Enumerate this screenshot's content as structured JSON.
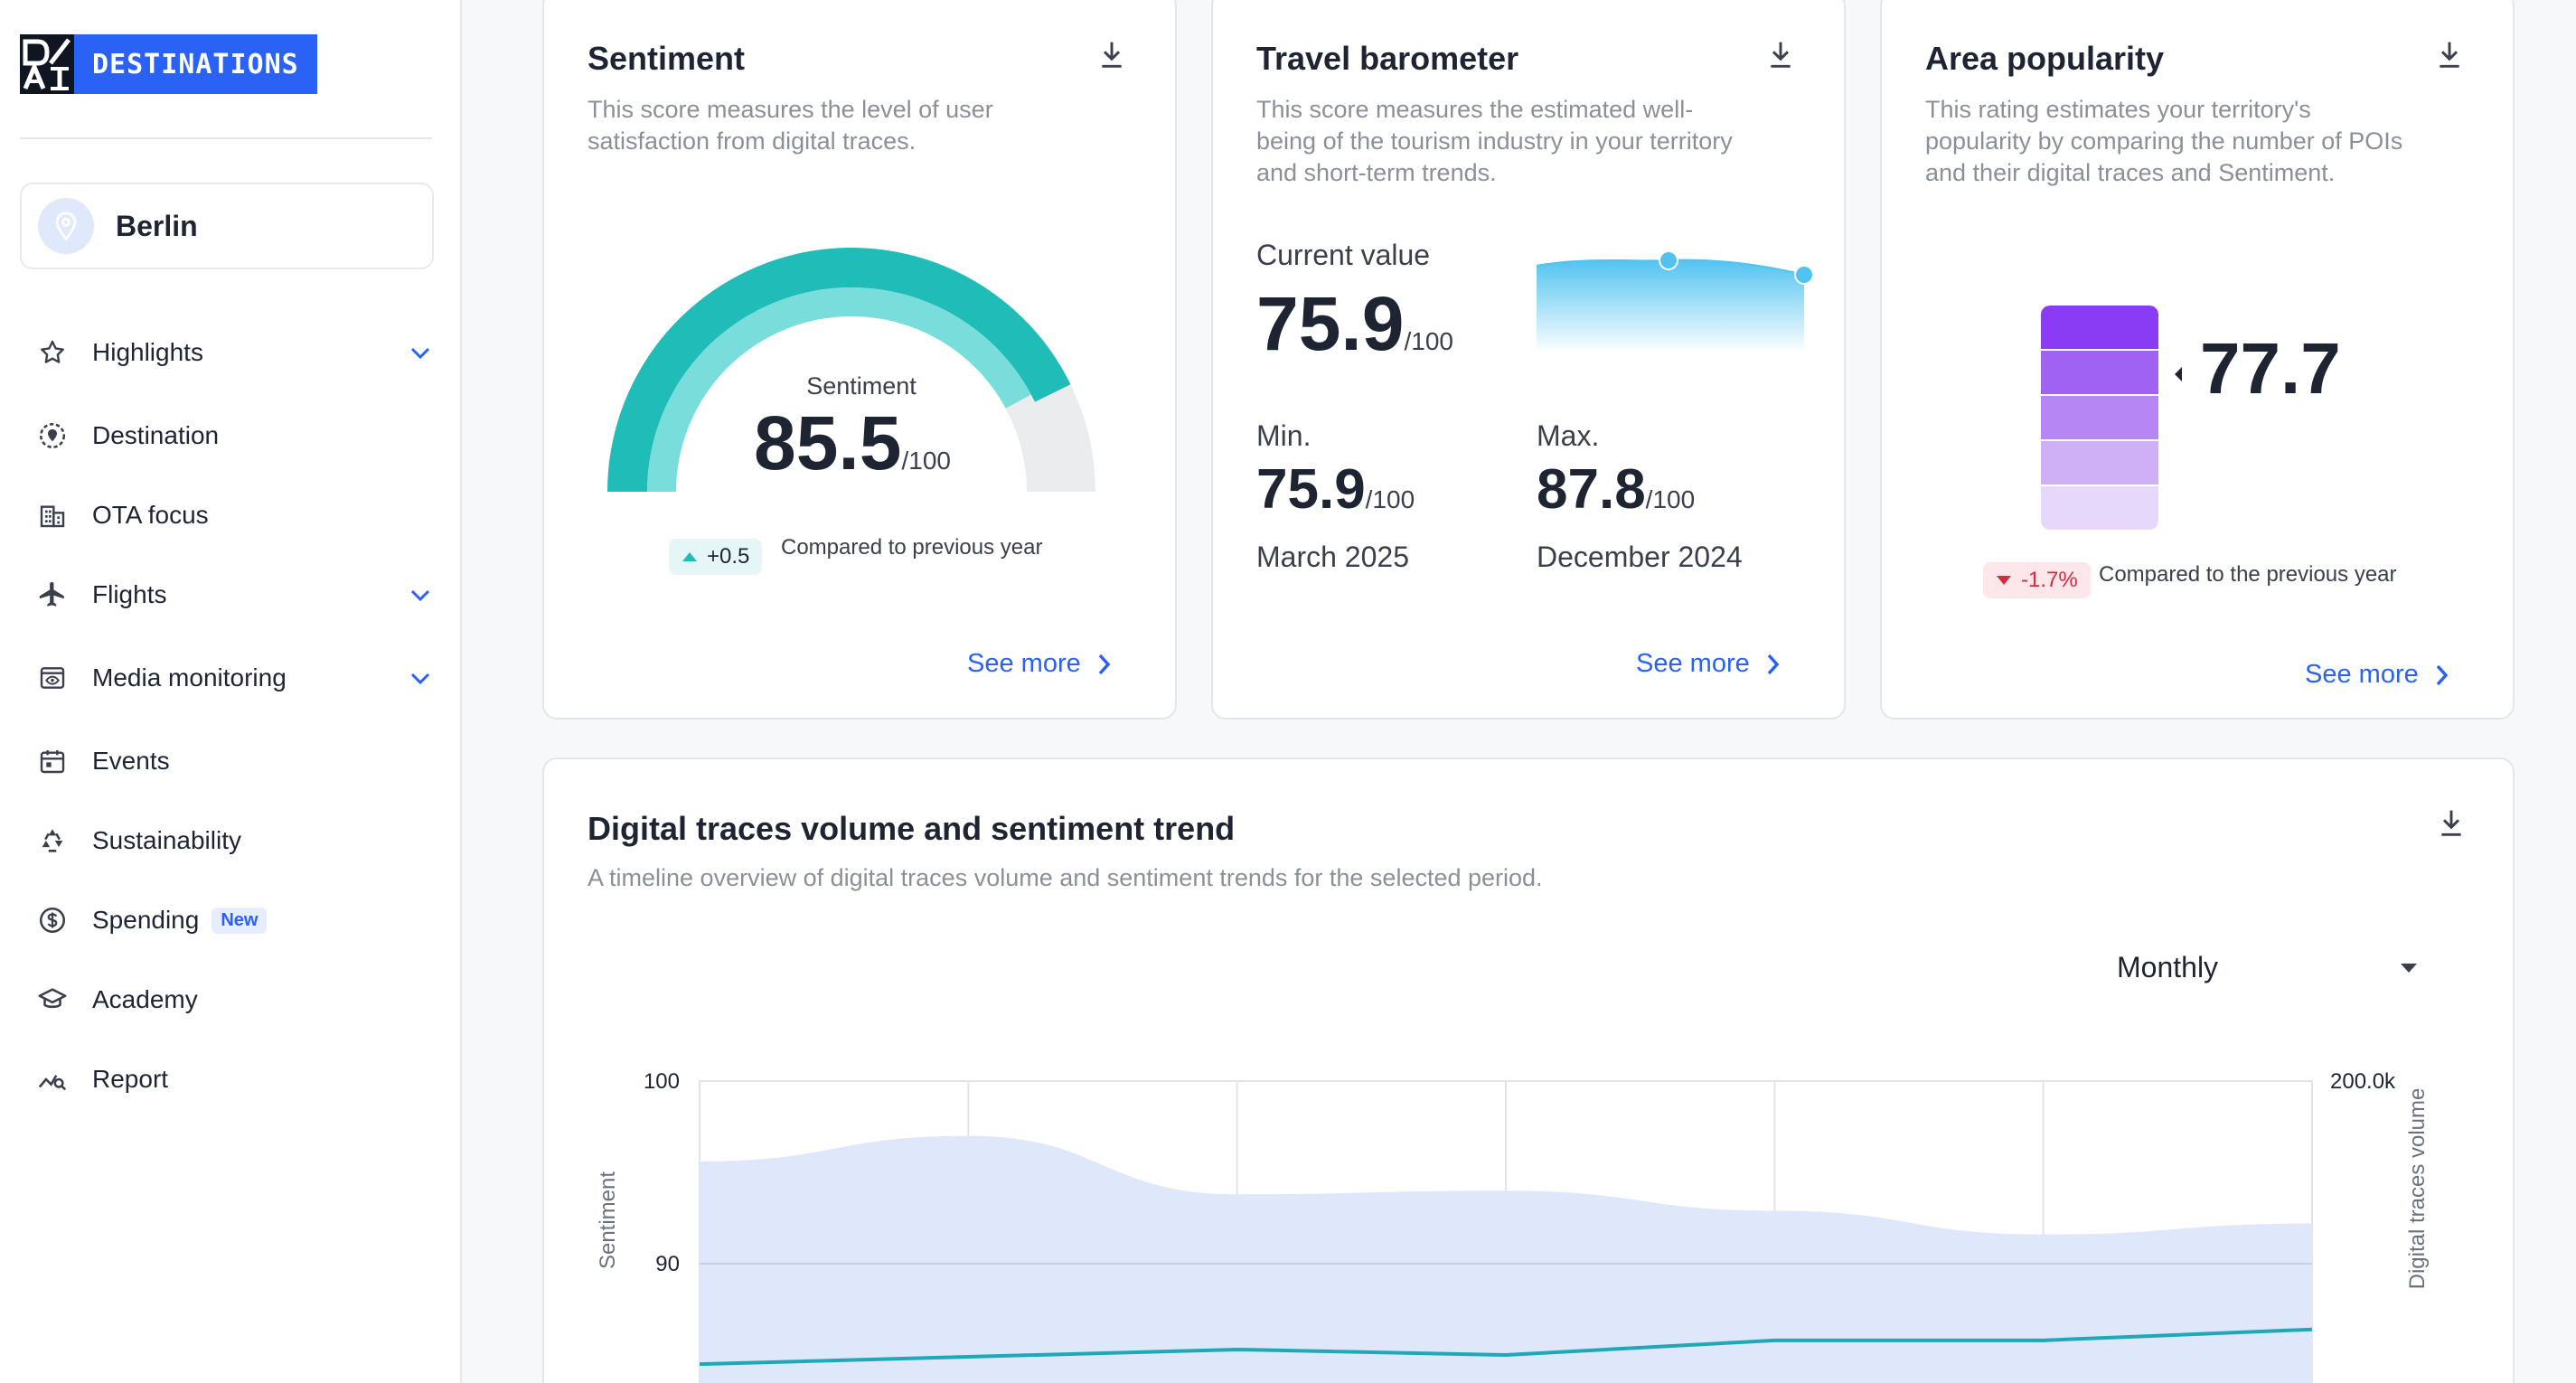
{
  "brand": {
    "logo_text": "DESTINATIONS",
    "accent": "#2a62f5"
  },
  "location": {
    "name": "Berlin"
  },
  "nav": {
    "items": [
      {
        "label": "Highlights",
        "icon": "star-icon",
        "expandable": true
      },
      {
        "label": "Destination",
        "icon": "location-target-icon",
        "expandable": false
      },
      {
        "label": "OTA focus",
        "icon": "building-icon",
        "expandable": false
      },
      {
        "label": "Flights",
        "icon": "airplane-icon",
        "expandable": true
      },
      {
        "label": "Media monitoring",
        "icon": "eye-screen-icon",
        "expandable": true
      },
      {
        "label": "Events",
        "icon": "calendar-icon",
        "expandable": false
      },
      {
        "label": "Sustainability",
        "icon": "recycle-icon",
        "expandable": false
      },
      {
        "label": "Spending",
        "icon": "dollar-icon",
        "expandable": false,
        "badge": "New"
      },
      {
        "label": "Academy",
        "icon": "graduation-cap-icon",
        "expandable": false
      },
      {
        "label": "Report",
        "icon": "chart-search-icon",
        "expandable": false
      }
    ]
  },
  "sentiment": {
    "title": "Sentiment",
    "description_lines": [
      "This score measures the level of user",
      "satisfaction from digital traces."
    ],
    "gauge_label": "Sentiment",
    "value": "85.5",
    "unit": "/100",
    "gauge_fraction": 0.855,
    "change": "+0.5",
    "compare_text": "Compared to previous year",
    "see_more": "See more",
    "color": "#1fbcb8"
  },
  "barometer": {
    "title": "Travel barometer",
    "description_lines": [
      "This score measures the estimated well-",
      "being of the tourism industry in your territory",
      "and short-term trends."
    ],
    "current_label": "Current value",
    "current_value": "75.9",
    "unit": "/100",
    "min_label": "Min.",
    "min_value": "75.9",
    "min_date": "March 2025",
    "max_label": "Max.",
    "max_value": "87.8",
    "max_date": "December 2024",
    "see_more": "See more"
  },
  "area": {
    "title": "Area popularity",
    "description_lines": [
      "This rating estimates your territory's",
      "popularity by comparing the number of POIs",
      "and their digital traces and Sentiment."
    ],
    "value": "77.7",
    "change": "-1.7%",
    "compare_text": "Compared to the previous year",
    "see_more": "See more",
    "scale_colors": [
      "#8a3cf5",
      "#a062f3",
      "#b786f5",
      "#cfb0f7",
      "#e6d8fb"
    ]
  },
  "trend": {
    "title": "Digital traces volume and sentiment trend",
    "description": "A timeline overview of digital traces volume and sentiment trends for the selected period.",
    "period": "Monthly"
  },
  "chart_data": {
    "type": "area",
    "ylabel": "Sentiment",
    "y2label": "Digital traces volume",
    "y_ticks": [
      "100",
      "90"
    ],
    "y2_ticks": [
      "200.0k"
    ],
    "series": [
      {
        "values": [
          95.6,
          97.0,
          93.8,
          94.0,
          92.9,
          91.6,
          92.2
        ]
      },
      {
        "values": [
          84.5,
          84.9,
          85.3,
          85.0,
          85.8,
          85.8,
          86.4
        ]
      }
    ]
  }
}
